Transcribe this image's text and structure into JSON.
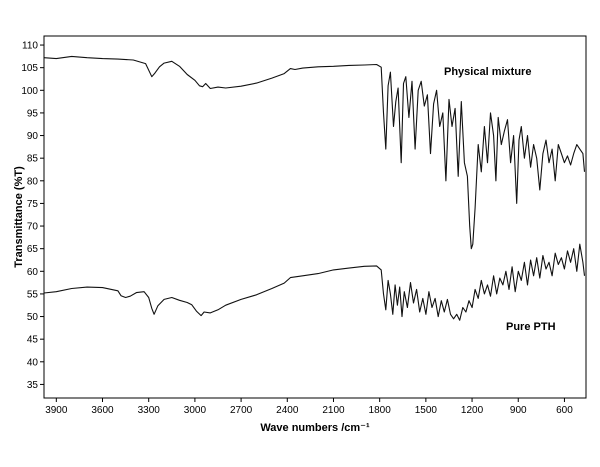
{
  "chart_data": {
    "type": "line",
    "xlabel": "Wave numbers /cm⁻¹",
    "ylabel": "Transmittance (%T)",
    "xlim": [
      3980,
      460
    ],
    "ylim": [
      32,
      112
    ],
    "x_reversed": true,
    "grid": false,
    "xticks": [
      3900,
      3600,
      3300,
      3000,
      2700,
      2400,
      2100,
      1800,
      1500,
      1200,
      900,
      600
    ],
    "yticks": [
      35,
      40,
      45,
      50,
      55,
      60,
      65,
      70,
      75,
      80,
      85,
      90,
      95,
      100,
      105,
      110
    ],
    "series": [
      {
        "name": "Physical mixture",
        "color": "#111111",
        "x": [
          3980,
          3900,
          3800,
          3700,
          3600,
          3500,
          3400,
          3320,
          3280,
          3260,
          3230,
          3200,
          3150,
          3100,
          3050,
          3000,
          2970,
          2950,
          2930,
          2900,
          2850,
          2800,
          2700,
          2600,
          2500,
          2420,
          2380,
          2350,
          2300,
          2200,
          2100,
          2000,
          1900,
          1820,
          1790,
          1775,
          1760,
          1745,
          1730,
          1710,
          1695,
          1680,
          1660,
          1645,
          1630,
          1610,
          1590,
          1570,
          1550,
          1530,
          1510,
          1490,
          1470,
          1450,
          1430,
          1410,
          1390,
          1370,
          1350,
          1330,
          1310,
          1290,
          1270,
          1250,
          1230,
          1215,
          1205,
          1195,
          1180,
          1160,
          1140,
          1120,
          1100,
          1080,
          1060,
          1045,
          1030,
          1010,
          990,
          970,
          950,
          930,
          910,
          895,
          880,
          860,
          840,
          820,
          800,
          780,
          760,
          740,
          720,
          700,
          680,
          660,
          640,
          620,
          600,
          580,
          560,
          540,
          520,
          500,
          480,
          470
        ],
        "y": [
          107.2,
          107,
          107.5,
          107.2,
          107,
          106.9,
          106.7,
          105.9,
          103,
          103.8,
          105.2,
          106,
          106.4,
          105.3,
          103.5,
          102.2,
          101,
          100.8,
          101.5,
          100.4,
          100.7,
          100.5,
          100.9,
          101.6,
          102.7,
          103.7,
          104.8,
          104.6,
          104.9,
          105.2,
          105.3,
          105.5,
          105.6,
          105.7,
          105.1,
          95,
          87,
          101,
          104,
          92,
          97.5,
          100.5,
          84,
          101.5,
          103,
          94,
          102,
          87,
          100,
          102,
          96.5,
          99,
          86,
          97,
          100,
          92,
          95,
          80,
          98,
          92,
          96,
          81,
          97.5,
          84,
          81,
          70,
          65,
          66,
          74,
          88,
          82,
          92,
          84,
          95,
          90,
          80,
          94,
          88,
          91,
          93.5,
          84,
          90,
          75,
          89,
          92,
          85,
          90,
          83,
          88,
          85,
          78,
          86,
          89,
          84,
          87,
          80,
          88,
          86,
          84,
          85.5,
          83.5,
          86,
          88,
          87,
          86,
          82
        ]
      },
      {
        "name": "Pure PTH",
        "color": "#111111",
        "x": [
          3980,
          3900,
          3800,
          3700,
          3600,
          3500,
          3480,
          3450,
          3420,
          3380,
          3330,
          3300,
          3280,
          3265,
          3240,
          3200,
          3150,
          3100,
          3050,
          3020,
          2990,
          2960,
          2940,
          2900,
          2850,
          2800,
          2700,
          2600,
          2500,
          2420,
          2380,
          2300,
          2200,
          2100,
          2000,
          1900,
          1820,
          1790,
          1775,
          1760,
          1745,
          1730,
          1715,
          1700,
          1685,
          1670,
          1655,
          1640,
          1620,
          1600,
          1580,
          1560,
          1540,
          1520,
          1500,
          1480,
          1460,
          1440,
          1420,
          1400,
          1380,
          1360,
          1340,
          1320,
          1300,
          1280,
          1260,
          1240,
          1220,
          1200,
          1180,
          1160,
          1140,
          1120,
          1100,
          1080,
          1060,
          1040,
          1020,
          1000,
          980,
          960,
          940,
          920,
          900,
          880,
          860,
          840,
          820,
          800,
          780,
          760,
          740,
          720,
          700,
          680,
          660,
          640,
          620,
          600,
          580,
          560,
          540,
          520,
          500,
          480,
          470
        ],
        "y": [
          55.2,
          55.5,
          56.2,
          56.5,
          56.4,
          55.7,
          54.6,
          54.2,
          54.5,
          55.3,
          55.5,
          54.2,
          51.8,
          50.5,
          52.4,
          53.8,
          54.2,
          53.6,
          53.1,
          52.6,
          51.2,
          50.2,
          51,
          50.8,
          51.5,
          52.5,
          53.8,
          54.8,
          56.2,
          57.4,
          58.6,
          59,
          59.5,
          60.3,
          60.7,
          61.1,
          61.2,
          60.3,
          55,
          51.5,
          58,
          55,
          50.5,
          57,
          52.5,
          56.5,
          50,
          55.5,
          52,
          57.5,
          53,
          56,
          51,
          54,
          50.5,
          55.5,
          52,
          54,
          50,
          53.5,
          51,
          53.8,
          50.5,
          49.5,
          50.5,
          49.2,
          52,
          51,
          53.5,
          52,
          56,
          54,
          58,
          55,
          57,
          54.5,
          59,
          55,
          58.5,
          57,
          60,
          56,
          61,
          55.5,
          60,
          58,
          62,
          57,
          62.5,
          59,
          63,
          58.5,
          63.5,
          60.5,
          62,
          59,
          64,
          61.5,
          63,
          60.5,
          64.5,
          62,
          65,
          60,
          66,
          62,
          59
        ]
      }
    ]
  }
}
